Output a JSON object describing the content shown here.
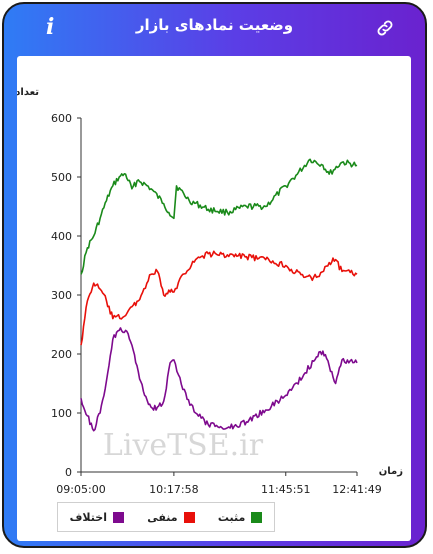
{
  "header": {
    "title": "وضعیت نمادهای بازار",
    "info_glyph": "i"
  },
  "watermark": "LiveTSE.ir",
  "chart_data": {
    "type": "line",
    "ylabel": "تعداد نماد",
    "xlabel": "زمان",
    "ylim": [
      0,
      600
    ],
    "yticks": [
      0,
      100,
      200,
      300,
      400,
      500,
      600
    ],
    "x_range": [
      "09:05:00",
      "12:41:49"
    ],
    "xticks": [
      "09:05:00",
      "10:17:58",
      "11:45:51",
      "12:41:49"
    ],
    "grid": false,
    "legend_position": "bottom-left",
    "series": [
      {
        "name": "مثبت",
        "color": "#1a8a1a",
        "x": [
          "09:05:00",
          "09:10:00",
          "09:15:00",
          "09:20:00",
          "09:25:00",
          "09:30:00",
          "09:35:00",
          "09:40:00",
          "09:45:00",
          "09:50:00",
          "10:00:00",
          "10:10:00",
          "10:14:00",
          "10:17:58",
          "10:20:00",
          "10:30:00",
          "10:45:00",
          "11:00:00",
          "11:15:00",
          "11:30:00",
          "11:45:51",
          "11:55:00",
          "12:05:00",
          "12:15:00",
          "12:20:00",
          "12:30:00",
          "12:41:49"
        ],
        "values": [
          335,
          380,
          400,
          430,
          460,
          485,
          500,
          505,
          480,
          495,
          480,
          455,
          440,
          430,
          485,
          460,
          445,
          440,
          450,
          450,
          485,
          505,
          530,
          520,
          505,
          525,
          520
        ]
      },
      {
        "name": "منفی",
        "color": "#e8100a",
        "x": [
          "09:05:00",
          "09:10:00",
          "09:15:00",
          "09:20:00",
          "09:25:00",
          "09:30:00",
          "09:40:00",
          "09:45:00",
          "09:50:00",
          "10:00:00",
          "10:05:00",
          "10:10:00",
          "10:15:00",
          "10:17:58",
          "10:25:00",
          "10:35:00",
          "10:45:00",
          "11:00:00",
          "11:15:00",
          "11:30:00",
          "11:45:51",
          "12:00:00",
          "12:10:00",
          "12:20:00",
          "12:25:00",
          "12:30:00",
          "12:41:49"
        ],
        "values": [
          215,
          290,
          320,
          310,
          290,
          260,
          265,
          280,
          290,
          335,
          340,
          300,
          305,
          305,
          335,
          360,
          370,
          368,
          365,
          360,
          350,
          330,
          330,
          355,
          360,
          340,
          335
        ]
      },
      {
        "name": "اختلاف",
        "color": "#7e0a8e",
        "x": [
          "09:05:00",
          "09:10:00",
          "09:15:00",
          "09:20:00",
          "09:25:00",
          "09:30:00",
          "09:35:00",
          "09:40:00",
          "09:45:00",
          "09:50:00",
          "09:55:00",
          "10:00:00",
          "10:05:00",
          "10:10:00",
          "10:15:00",
          "10:17:58",
          "10:25:00",
          "10:35:00",
          "10:45:00",
          "11:00:00",
          "11:15:00",
          "11:30:00",
          "11:45:51",
          "12:00:00",
          "12:10:00",
          "12:15:00",
          "12:20:00",
          "12:25:00",
          "12:30:00",
          "12:41:49"
        ],
        "values": [
          125,
          95,
          70,
          100,
          155,
          225,
          240,
          240,
          215,
          170,
          130,
          110,
          110,
          120,
          185,
          190,
          140,
          100,
          80,
          75,
          85,
          105,
          130,
          165,
          195,
          205,
          180,
          150,
          190,
          185
        ]
      }
    ]
  }
}
